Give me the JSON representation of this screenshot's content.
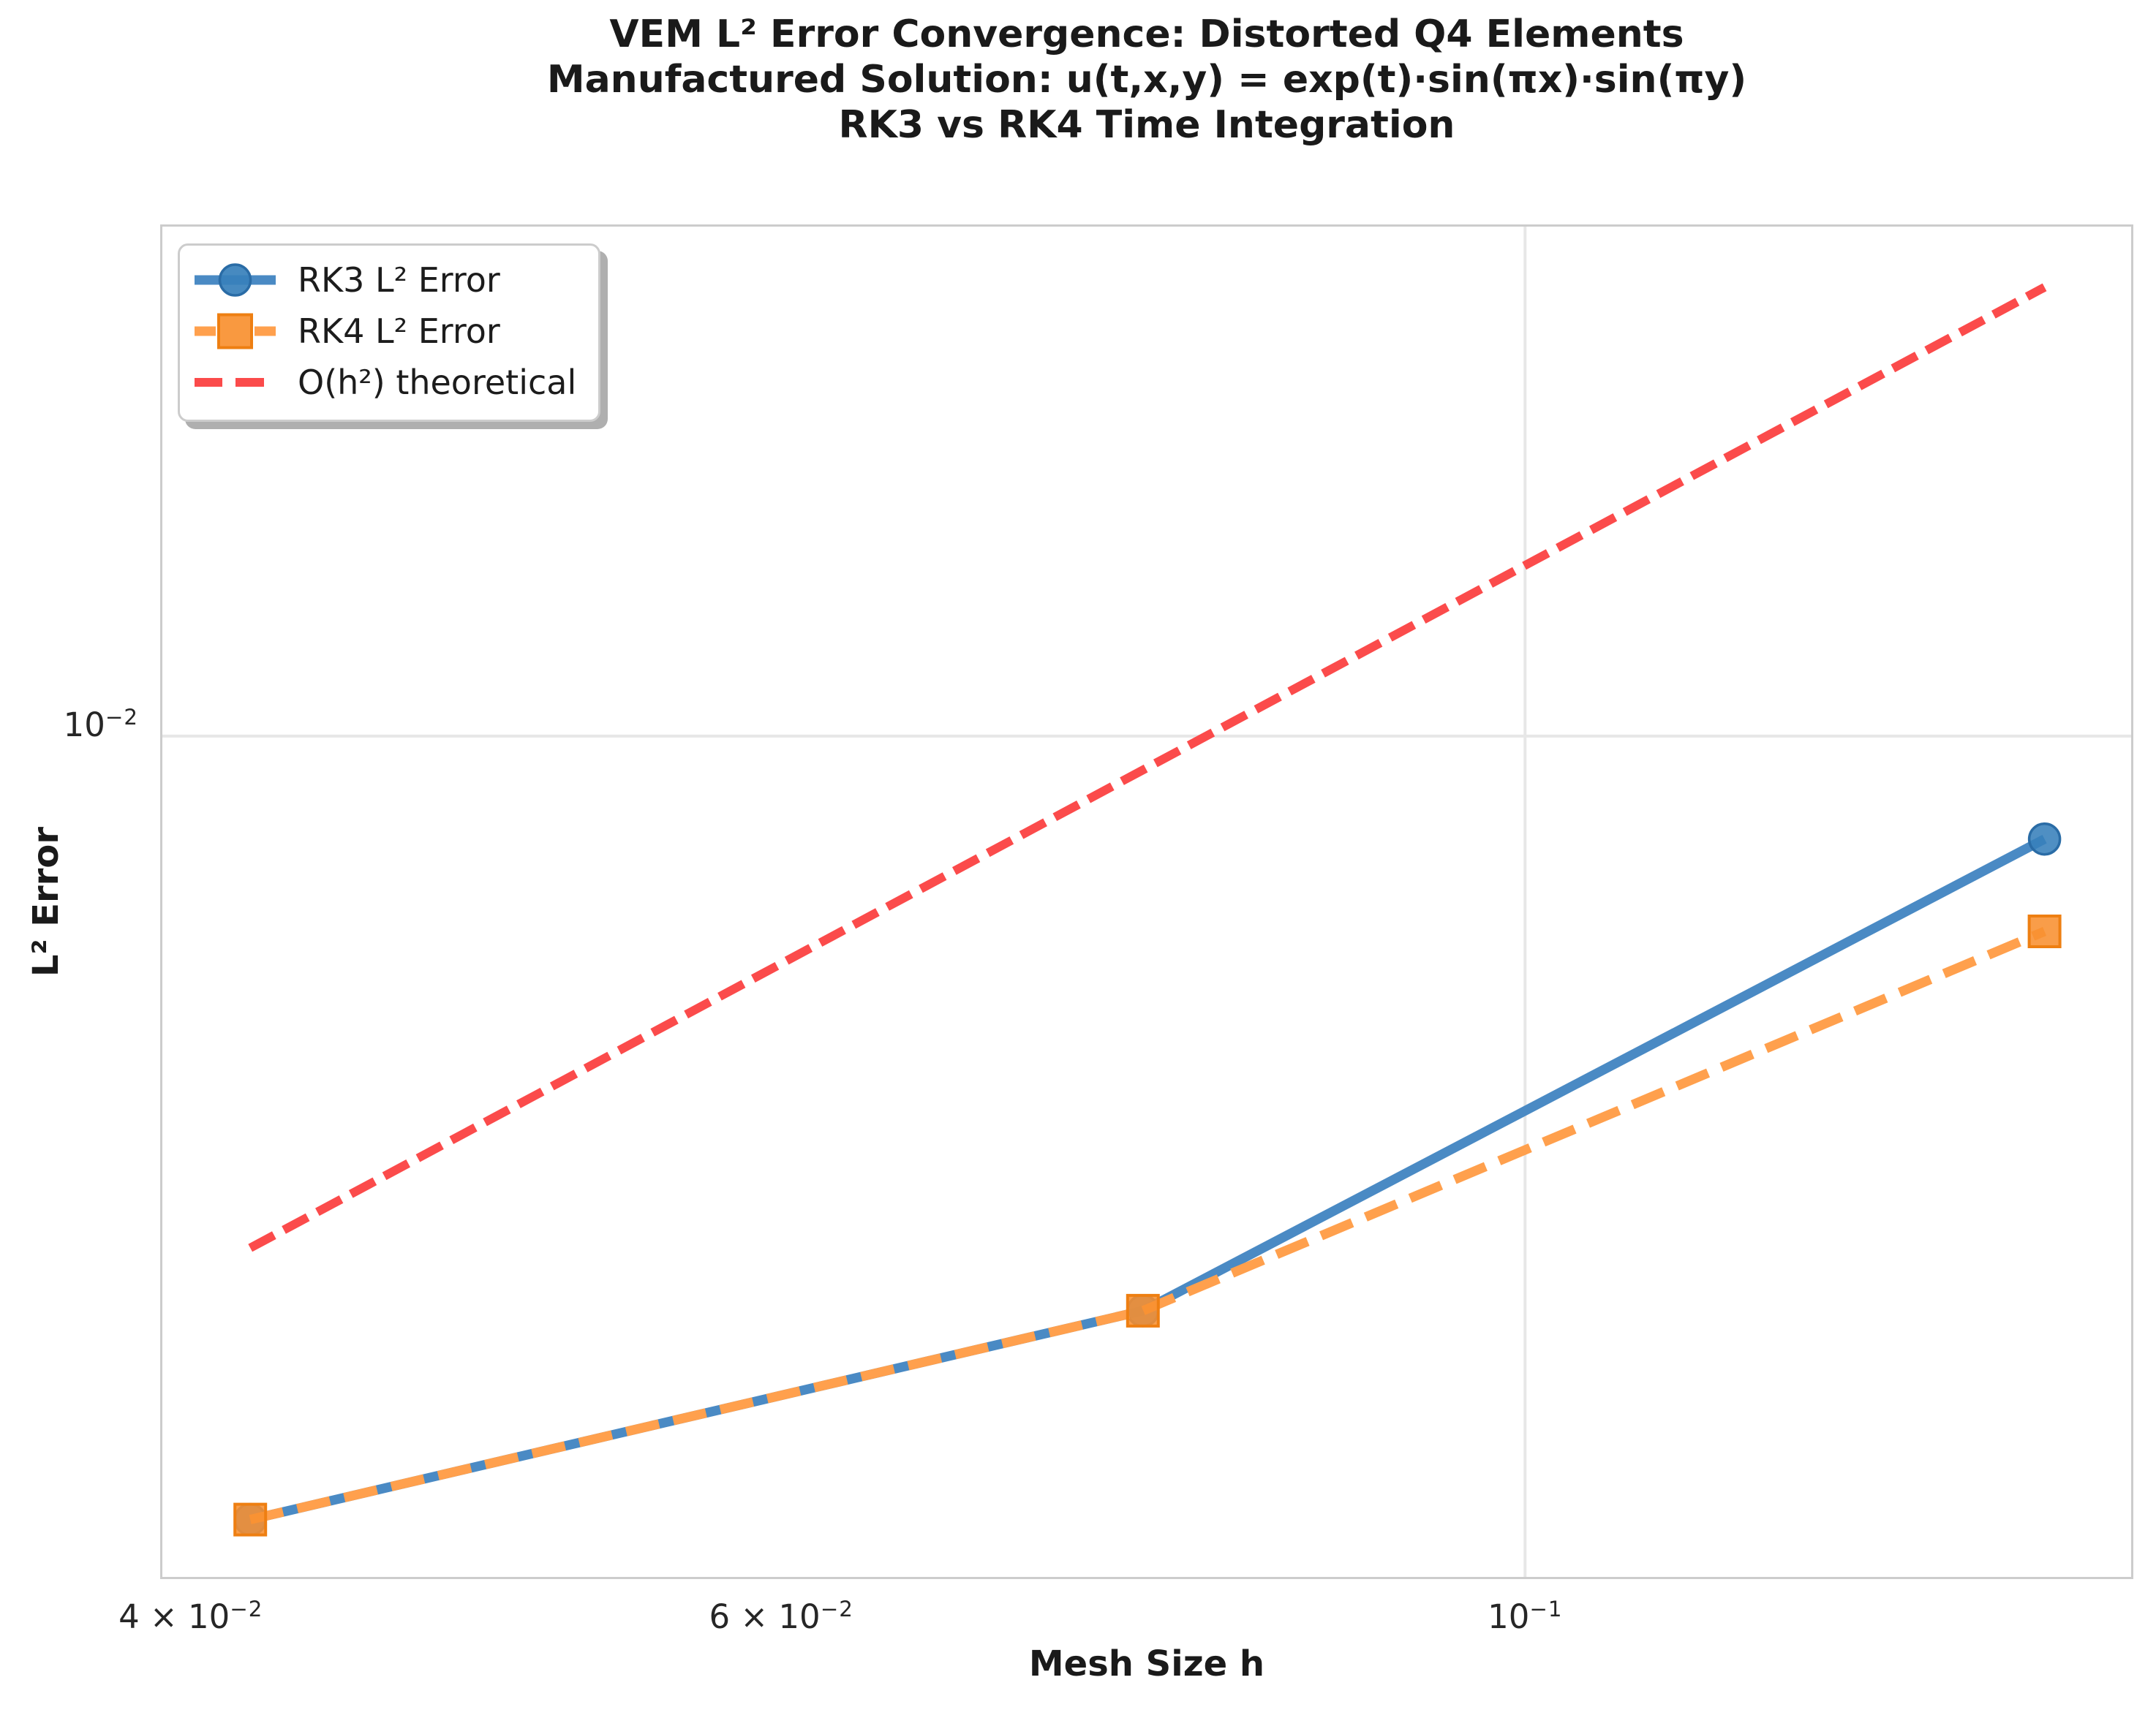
{
  "chart_data": {
    "type": "line",
    "title_lines": [
      "VEM L² Error Convergence: Distorted Q4 Elements",
      "Manufactured Solution: u(t,x,y) = exp(t)·sin(πx)·sin(πy)",
      "RK3 vs RK4 Time Integration"
    ],
    "xlabel": "Mesh Size h",
    "ylabel": "L² Error",
    "x_scale": "log",
    "y_scale": "log",
    "xlim": [
      0.03917,
      0.15184
    ],
    "ylim": [
      0.0011503,
      0.037159
    ],
    "x_ticks": [
      {
        "value": 0.04,
        "base": "4 × 10",
        "exp": "−2"
      },
      {
        "value": 0.06,
        "base": "6 × 10",
        "exp": "−2"
      },
      {
        "value": 0.1,
        "base": "10",
        "exp": "−1"
      }
    ],
    "y_ticks": [
      {
        "value": 0.01,
        "base": "10",
        "exp": "−2"
      }
    ],
    "grid": {
      "x_values": [
        0.1
      ],
      "y_values": [
        0.01
      ],
      "color": "#e7e7e7",
      "spine_color": "#cccccc"
    },
    "legend": {
      "position": "upper left"
    },
    "series": [
      {
        "name": "RK3 L² Error",
        "marker": "circle",
        "line_style": "solid",
        "color": "#4a8ac4",
        "marker_fill": "#3780bb",
        "marker_edge": "#2a6ca6",
        "x": [
          0.04167,
          0.07692,
          0.14286
        ],
        "y": [
          0.00134,
          0.00229,
          0.00768
        ]
      },
      {
        "name": "RK4 L² Error",
        "marker": "square",
        "line_style": "dashed",
        "color": "#ffa04d",
        "marker_fill": "#f89030",
        "marker_edge": "#ee7f12",
        "x": [
          0.04167,
          0.07692,
          0.14286
        ],
        "y": [
          0.00134,
          0.00229,
          0.00606
        ]
      },
      {
        "name": "O(h²) theoretical",
        "marker": "none",
        "line_style": "dashed",
        "color": "#fb4b4b",
        "x": [
          0.04167,
          0.14286
        ],
        "y": [
          0.00269,
          0.03163
        ]
      }
    ]
  }
}
